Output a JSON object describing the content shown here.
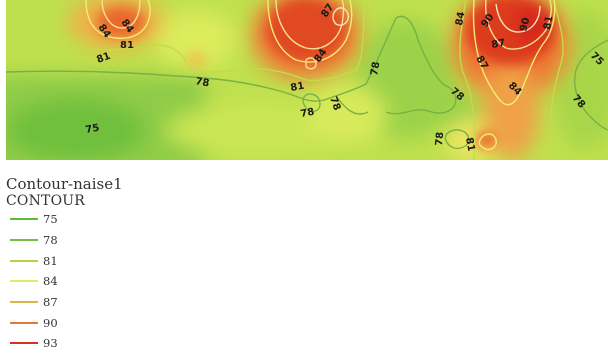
{
  "legend": {
    "title": "Contour-naise1",
    "subtitle": "CONTOUR",
    "items": [
      {
        "label": "75",
        "color": "#5dbb3b"
      },
      {
        "label": "78",
        "color": "#7dbb47"
      },
      {
        "label": "81",
        "color": "#b4d444"
      },
      {
        "label": "84",
        "color": "#e0ea62"
      },
      {
        "label": "87",
        "color": "#e2b24a"
      },
      {
        "label": "90",
        "color": "#e07a3a"
      },
      {
        "label": "93",
        "color": "#d83222"
      }
    ]
  },
  "map": {
    "contour_labels": [
      "84",
      "84",
      "81",
      "81",
      "87",
      "84",
      "81",
      "78",
      "78",
      "78",
      "75",
      "84",
      "90",
      "90",
      "87",
      "87",
      "84",
      "78",
      "78",
      "81",
      "78",
      "75"
    ]
  }
}
